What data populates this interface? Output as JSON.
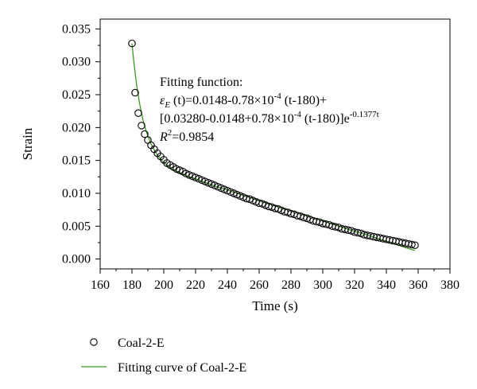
{
  "chart_data": {
    "type": "scatter",
    "xlabel": "Time (s)",
    "ylabel": "Strain",
    "xlim": [
      160,
      380
    ],
    "ylim": [
      -0.0015,
      0.0365
    ],
    "xticks": [
      "160",
      "180",
      "200",
      "220",
      "240",
      "260",
      "280",
      "300",
      "320",
      "340",
      "360",
      "380"
    ],
    "yticks": [
      "0.000",
      "0.005",
      "0.010",
      "0.015",
      "0.020",
      "0.025",
      "0.030",
      "0.035"
    ],
    "grid": false,
    "legend_position": "bottom",
    "annotation": {
      "line1": "Fitting function:",
      "line2_symbol": "ε",
      "line2_sub": "E",
      "line2_a": " (t)=0.0148-0.78×10",
      "line2_exp": "-4",
      "line2_b": " (t-180)+",
      "line3_a": "[0.03280-0.0148+0.78×10",
      "line3_exp": "-4",
      "line3_b": " (t-180)]e",
      "line3_exp2": "-0.1377t",
      "line4_r": "R",
      "line4_sup": "2",
      "line4_val": "=0.9854"
    },
    "series": [
      {
        "name": "Coal-2-E",
        "kind": "markers",
        "color": "#000000",
        "x": [
          180,
          182,
          184,
          186,
          188,
          190,
          192,
          194,
          196,
          198,
          200,
          202,
          204,
          206,
          208,
          210,
          212,
          214,
          216,
          218,
          220,
          222,
          224,
          226,
          228,
          230,
          232,
          234,
          236,
          238,
          240,
          242,
          244,
          246,
          248,
          250,
          252,
          254,
          256,
          258,
          260,
          262,
          264,
          266,
          268,
          270,
          272,
          274,
          276,
          278,
          280,
          282,
          284,
          286,
          288,
          290,
          292,
          294,
          296,
          298,
          300,
          302,
          304,
          306,
          308,
          310,
          312,
          314,
          316,
          318,
          320,
          322,
          324,
          326,
          328,
          330,
          332,
          334,
          336,
          338,
          340,
          342,
          344,
          346,
          348,
          350,
          352,
          354,
          356,
          358
        ],
        "y": [
          0.0328,
          0.0253,
          0.0222,
          0.0203,
          0.019,
          0.0181,
          0.0173,
          0.0167,
          0.0161,
          0.0156,
          0.0151,
          0.0146,
          0.0143,
          0.014,
          0.0137,
          0.0135,
          0.0133,
          0.013,
          0.0128,
          0.0126,
          0.0124,
          0.0122,
          0.012,
          0.0118,
          0.0116,
          0.0114,
          0.0112,
          0.011,
          0.0108,
          0.0106,
          0.0104,
          0.0102,
          0.01,
          0.0098,
          0.0096,
          0.0094,
          0.0092,
          0.0091,
          0.0089,
          0.0087,
          0.0085,
          0.0084,
          0.0082,
          0.008,
          0.0079,
          0.0077,
          0.0076,
          0.0074,
          0.0072,
          0.0071,
          0.0069,
          0.0068,
          0.0066,
          0.0065,
          0.0063,
          0.0062,
          0.006,
          0.0058,
          0.0057,
          0.0056,
          0.0054,
          0.0053,
          0.0052,
          0.005,
          0.0049,
          0.0048,
          0.0046,
          0.0045,
          0.0044,
          0.0043,
          0.0041,
          0.004,
          0.0039,
          0.0037,
          0.0036,
          0.0035,
          0.0034,
          0.0033,
          0.0032,
          0.0031,
          0.003,
          0.0029,
          0.0028,
          0.0027,
          0.0026,
          0.0025,
          0.0024,
          0.0023,
          0.0022,
          0.0021
        ]
      },
      {
        "name": "Fitting curve of Coal-2-E",
        "kind": "line",
        "color": "#3a9a1e",
        "x": [
          180,
          181,
          182,
          183,
          184,
          185,
          186,
          187,
          188,
          189,
          190,
          192,
          194,
          196,
          198,
          200,
          203,
          206,
          210,
          215,
          220,
          230,
          240,
          250,
          260,
          270,
          280,
          290,
          300,
          310,
          320,
          330,
          340,
          350,
          358
        ],
        "y": [
          0.0328,
          0.0304,
          0.0283,
          0.0264,
          0.0248,
          0.0234,
          0.0222,
          0.0211,
          0.0202,
          0.0194,
          0.0187,
          0.0175,
          0.0166,
          0.0158,
          0.0152,
          0.0147,
          0.0141,
          0.0136,
          0.0131,
          0.0126,
          0.0122,
          0.0113,
          0.0105,
          0.0097,
          0.0089,
          0.0081,
          0.0074,
          0.0066,
          0.0058,
          0.005,
          0.0042,
          0.0035,
          0.0027,
          0.0019,
          0.0013
        ]
      }
    ]
  }
}
